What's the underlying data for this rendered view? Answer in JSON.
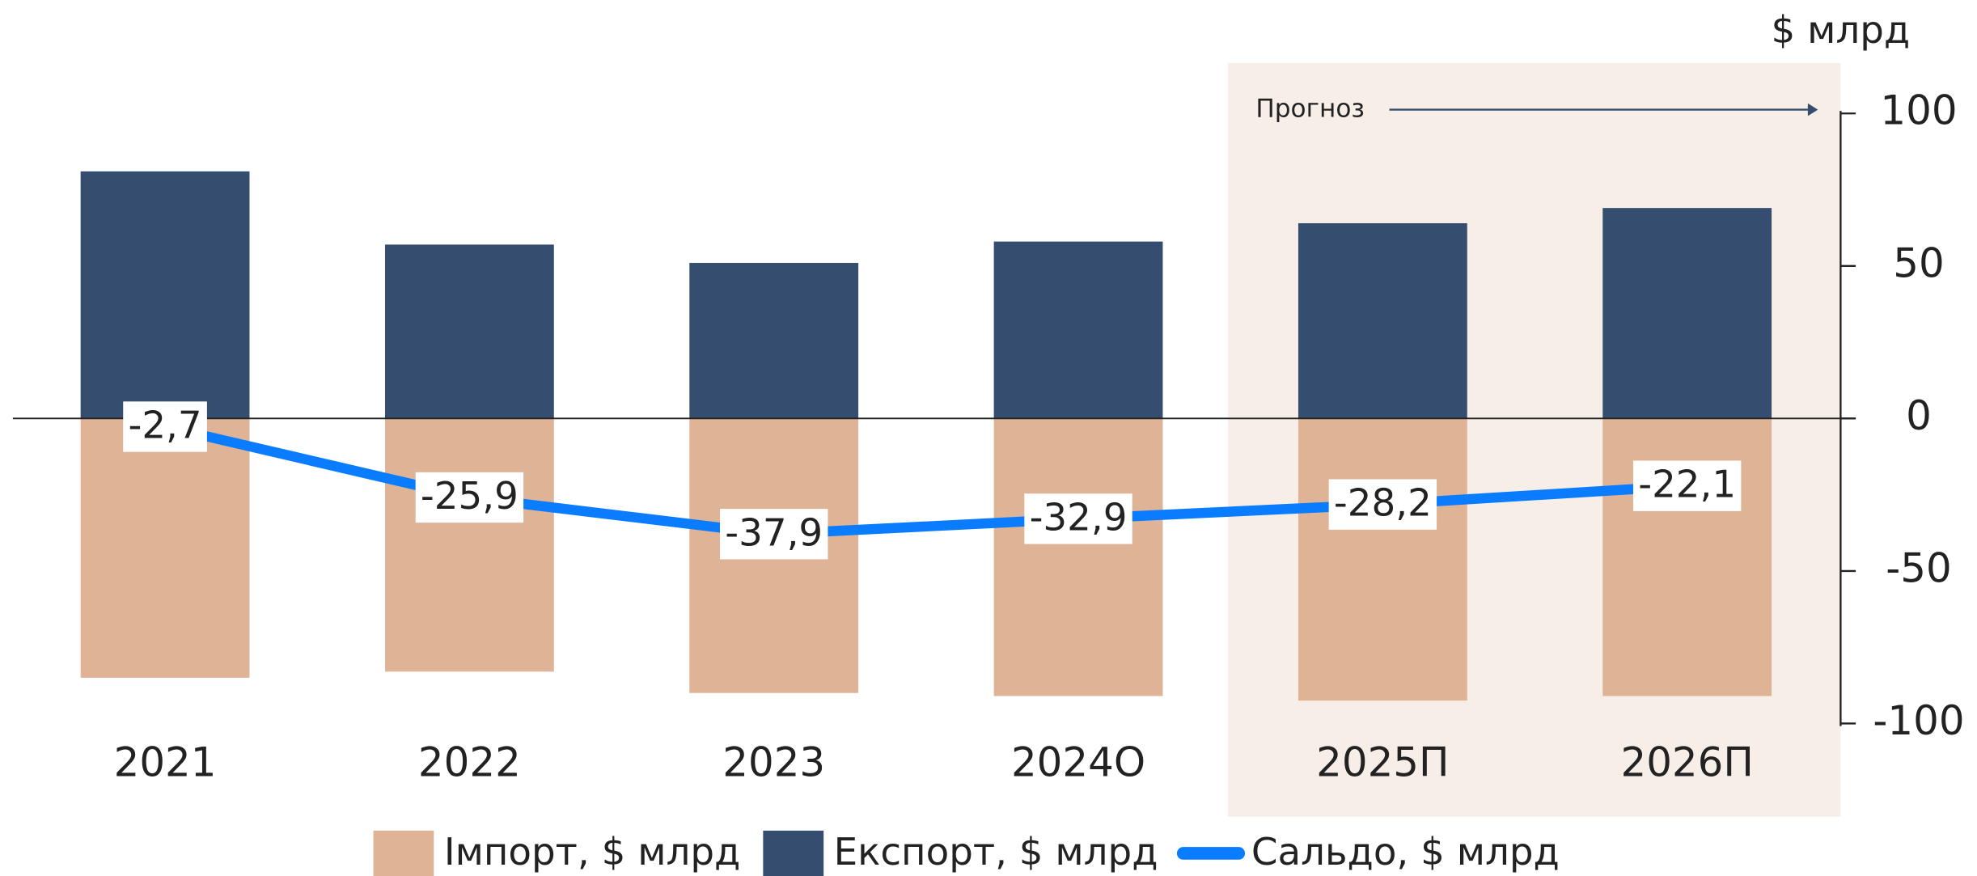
{
  "chart_data": {
    "type": "bar_line",
    "y_label": "$ млрд",
    "annotation": "Прогноз",
    "categories": [
      "2021",
      "2022",
      "2023",
      "2024О",
      "2025П",
      "2026П"
    ],
    "series": [
      {
        "name": "Імпорт, $ млрд",
        "color": "#dfb396",
        "type": "bar",
        "values": [
          -85,
          -83,
          -90,
          -91,
          -92.5,
          -91
        ]
      },
      {
        "name": "Експорт, $ млрд",
        "color": "#354e6f",
        "type": "bar",
        "values": [
          81,
          57,
          51,
          58,
          64,
          69
        ]
      },
      {
        "name": "Сальдо, $ млрд",
        "color": "#0a7cff",
        "type": "line",
        "values": [
          -2.7,
          -25.9,
          -37.9,
          -32.9,
          -28.2,
          -22.1
        ],
        "value_labels": [
          "-2,7",
          "-25,9",
          "-37,9",
          "-32,9",
          "-28,2",
          "-22,1"
        ]
      }
    ],
    "ylim": [
      -100,
      100
    ],
    "yticks": [
      -100,
      -50,
      0,
      50,
      100
    ],
    "y_axis_side": "right",
    "legend": "bottom"
  }
}
